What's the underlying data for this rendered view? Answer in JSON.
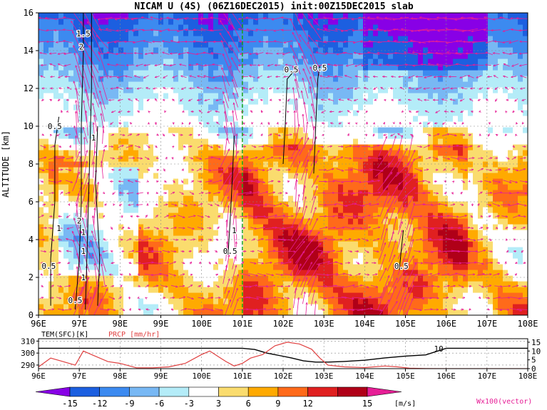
{
  "title": "NICAM U (4S) (06Z16DEC2015) init:00Z15DEC2015 slab",
  "colors": {
    "levels": [
      "#8800e6",
      "#1c5fe0",
      "#3c8af0",
      "#78b8f4",
      "#b4ecf8",
      "#ffffff",
      "#fadc6e",
      "#ffaa00",
      "#ff6a1a",
      "#e02020",
      "#b00018",
      "#e61e96"
    ],
    "vector": "#e61e96",
    "rain_line": "#e04040",
    "marker_line": "#1aa01a"
  },
  "chart_data": [
    {
      "name": "main-section",
      "type": "heatmap",
      "title": "NICAM U (4S) (06Z16DEC2015) init:00Z15DEC2015 slab",
      "xlabel": "",
      "ylabel": "ALTITUDE [km]",
      "xlim": [
        96,
        108
      ],
      "ylim": [
        0,
        16
      ],
      "x_ticks": [
        96,
        97,
        98,
        99,
        100,
        101,
        102,
        103,
        104,
        105,
        106,
        107,
        108
      ],
      "x_tick_labels": [
        "96E",
        "97E",
        "98E",
        "99E",
        "100E",
        "101E",
        "102E",
        "103E",
        "104E",
        "105E",
        "106E",
        "107E",
        "108E"
      ],
      "y_ticks": [
        0,
        2,
        4,
        6,
        8,
        10,
        12,
        14,
        16
      ],
      "y_tick_labels": [
        "0",
        "2",
        "4",
        "6",
        "8",
        "10",
        "12",
        "14",
        "16"
      ],
      "grid": true,
      "marker_x": 101,
      "contour_labels": [
        {
          "text": "0.5",
          "x": 102.2,
          "y": 13.0
        },
        {
          "text": "0.5",
          "x": 102.9,
          "y": 13.1
        },
        {
          "text": "0.5",
          "x": 96.4,
          "y": 10.0
        },
        {
          "text": "1",
          "x": 97.35,
          "y": 9.4
        },
        {
          "text": "1",
          "x": 96.5,
          "y": 4.6
        },
        {
          "text": "2",
          "x": 97.0,
          "y": 5.0
        },
        {
          "text": "1",
          "x": 97.1,
          "y": 4.4
        },
        {
          "text": "1",
          "x": 97.1,
          "y": 3.4
        },
        {
          "text": "0.5",
          "x": 96.25,
          "y": 2.6
        },
        {
          "text": "1",
          "x": 97.1,
          "y": 2.0
        },
        {
          "text": "0.5",
          "x": 96.9,
          "y": 0.8
        },
        {
          "text": "1.5",
          "x": 97.1,
          "y": 14.9
        },
        {
          "text": "2",
          "x": 97.05,
          "y": 14.2
        },
        {
          "text": "1",
          "x": 100.8,
          "y": 4.5
        },
        {
          "text": "0.5",
          "x": 100.7,
          "y": 3.4
        },
        {
          "text": "0.5",
          "x": 104.9,
          "y": 2.6
        }
      ]
    },
    {
      "name": "surface-panel",
      "type": "line",
      "xlim": [
        96,
        108
      ],
      "x_tick_labels": [
        "96E",
        "97E",
        "98E",
        "99E",
        "100E",
        "101E",
        "102E",
        "103E",
        "104E",
        "105E",
        "106E",
        "107E",
        "108E"
      ],
      "left_axis_label": "TEM(SFC)[K]",
      "left_ticks": [
        "310",
        "300",
        "290"
      ],
      "left_ylim": [
        287,
        312
      ],
      "right_axis_label": "PRCP [mm/hr]",
      "right_ticks": [
        "15",
        "10",
        "5",
        "0"
      ],
      "right_ylim": [
        0,
        17
      ],
      "annotation": "10",
      "series": [
        {
          "name": "TEM(SFC)[K]",
          "axis": "left",
          "x": [
            96,
            96.8,
            97,
            97.2,
            98,
            99,
            100,
            100.5,
            101,
            101.3,
            101.6,
            101.9,
            102.2,
            102.5,
            102.8,
            103.1,
            103.5,
            104,
            104.5,
            105,
            105.5,
            106,
            107,
            108
          ],
          "y": [
            304,
            304,
            304,
            304,
            304,
            304,
            304,
            304,
            304,
            303,
            300,
            298,
            296,
            293.5,
            292.5,
            292.5,
            293,
            294,
            296,
            297.5,
            298.5,
            304,
            304,
            304
          ]
        },
        {
          "name": "PRCP [mm/hr]",
          "axis": "right",
          "x": [
            96,
            96.3,
            96.6,
            96.9,
            97.1,
            97.4,
            97.7,
            98,
            98.4,
            98.8,
            99.2,
            99.6,
            100,
            100.2,
            100.4,
            100.6,
            100.8,
            101,
            101.2,
            101.5,
            101.8,
            102.1,
            102.4,
            102.7,
            102.9,
            103.1,
            103.5,
            104,
            104.5,
            104.8,
            105.1,
            105.5,
            106,
            107,
            108
          ],
          "y": [
            1,
            6,
            4,
            2,
            10,
            7,
            4,
            3,
            0.5,
            0.5,
            1,
            3,
            8,
            10,
            7,
            4,
            1.5,
            3,
            6,
            8,
            13,
            15,
            14,
            11,
            6,
            2,
            1,
            0.6,
            1.5,
            1,
            0.3,
            0.1,
            0,
            0,
            0
          ]
        }
      ]
    },
    {
      "name": "colorbar",
      "type": "heatmap",
      "tick_labels": [
        "-15",
        "-12",
        "-9",
        "-6",
        "-3",
        "3",
        "6",
        "9",
        "12",
        "15"
      ],
      "unit": "[m/s]",
      "vector_label": "Wx100(vector)"
    }
  ]
}
